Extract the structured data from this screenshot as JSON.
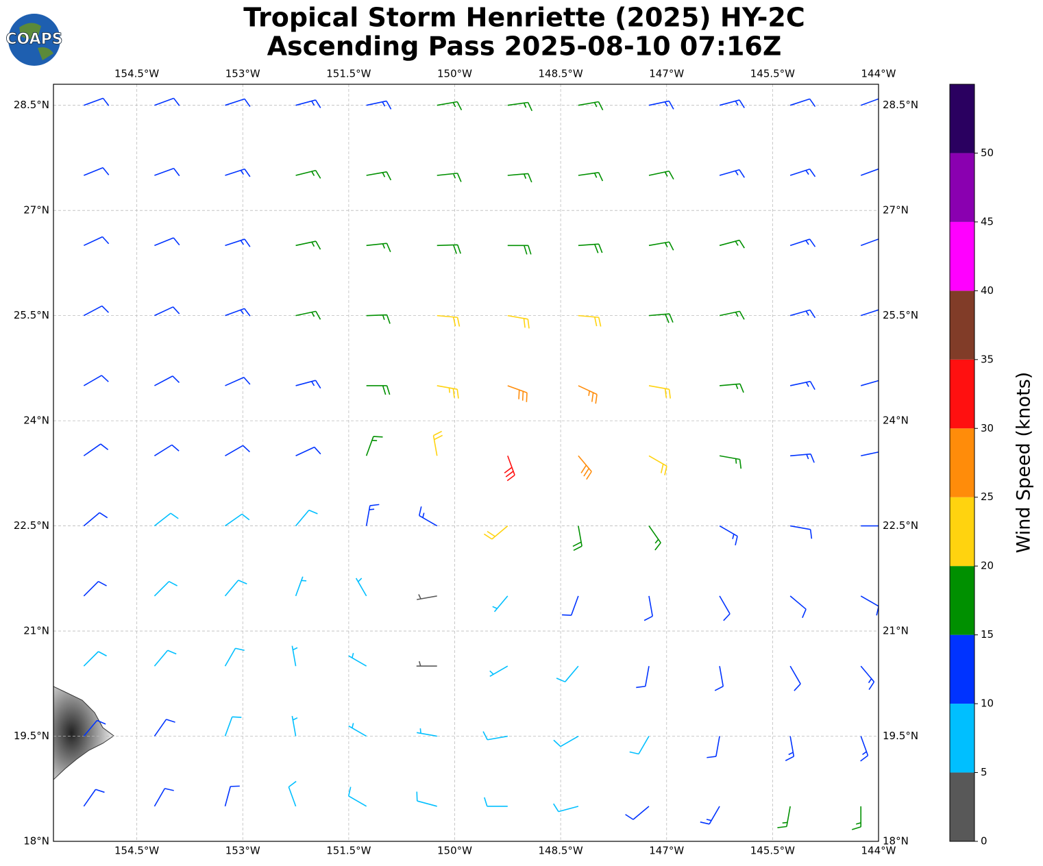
{
  "chart_data": {
    "type": "barbs",
    "title": "Tropical Storm Henriette (2025) HY-2C",
    "subtitle": "Ascending Pass 2025-08-10 07:16Z",
    "logo": "COAPS",
    "colorbar_label": "Wind Speed (knots)",
    "xlim": [
      -155.68,
      -144
    ],
    "ylim": [
      18,
      28.8
    ],
    "xticks": [
      {
        "value": -154.5,
        "label": "154.5°W"
      },
      {
        "value": -153,
        "label": "153°W"
      },
      {
        "value": -151.5,
        "label": "151.5°W"
      },
      {
        "value": -150,
        "label": "150°W"
      },
      {
        "value": -148.5,
        "label": "148.5°W"
      },
      {
        "value": -147,
        "label": "147°W"
      },
      {
        "value": -145.5,
        "label": "145.5°W"
      },
      {
        "value": -144,
        "label": "144°W"
      }
    ],
    "yticks": [
      {
        "value": 18,
        "label": "18°N"
      },
      {
        "value": 19.5,
        "label": "19.5°N"
      },
      {
        "value": 21,
        "label": "21°N"
      },
      {
        "value": 22.5,
        "label": "22.5°N"
      },
      {
        "value": 24,
        "label": "24°N"
      },
      {
        "value": 25.5,
        "label": "25.5°N"
      },
      {
        "value": 27,
        "label": "27°N"
      },
      {
        "value": 28.5,
        "label": "28.5°N"
      }
    ],
    "grid": true,
    "clim": [
      0,
      55
    ],
    "cticks": [
      0,
      5,
      10,
      15,
      20,
      25,
      30,
      35,
      40,
      45,
      50
    ],
    "colors": [
      "#585858",
      "#00bfff",
      "#0033ff",
      "#009000",
      "#ffd30f",
      "#ff8c0a",
      "#ff1010",
      "#813c28",
      "#ff00ff",
      "#8a00b0",
      "#2a0060"
    ],
    "lons": [
      -155.25,
      -154.25,
      -153.25,
      -152.25,
      -151.25,
      -150.25,
      -149.25,
      -148.25,
      -147.25,
      -146.25,
      -145.25,
      -144.25
    ],
    "lats": [
      28.5,
      27.5,
      26.5,
      25.5,
      24.5,
      23.5,
      22.5,
      21.5,
      20.5,
      19.5,
      18.5
    ],
    "speed": [
      [
        12,
        12,
        12,
        13,
        14,
        16,
        16,
        16,
        14,
        13,
        12,
        11
      ],
      [
        12,
        12,
        13,
        15,
        16,
        17,
        17,
        17,
        16,
        14,
        13,
        12
      ],
      [
        11,
        12,
        14,
        16,
        17,
        18,
        19,
        18,
        17,
        15,
        13,
        12
      ],
      [
        11,
        11,
        13,
        15,
        17,
        20,
        22,
        22,
        19,
        16,
        14,
        12
      ],
      [
        10,
        11,
        12,
        14,
        18,
        23,
        28,
        26,
        22,
        17,
        14,
        12
      ],
      [
        10,
        10,
        11,
        12,
        15,
        22,
        30,
        28,
        22,
        17,
        13,
        12
      ],
      [
        10,
        9,
        9,
        8,
        13,
        14,
        20,
        19,
        16,
        13,
        12,
        11
      ],
      [
        10,
        9,
        8,
        7,
        5,
        4,
        7,
        10,
        12,
        12,
        11,
        12
      ],
      [
        9,
        8,
        8,
        7,
        6,
        4,
        5,
        8,
        10,
        11,
        12,
        13
      ],
      [
        11,
        10,
        8,
        7,
        7,
        7,
        8,
        8,
        9,
        11,
        13,
        14
      ],
      [
        12,
        12,
        10,
        8,
        8,
        8,
        8,
        9,
        10,
        13,
        15,
        16
      ]
    ],
    "direction": [
      [
        70,
        70,
        72,
        75,
        78,
        80,
        82,
        80,
        78,
        75,
        72,
        70
      ],
      [
        68,
        70,
        72,
        76,
        80,
        84,
        85,
        82,
        78,
        74,
        72,
        70
      ],
      [
        65,
        68,
        72,
        78,
        84,
        88,
        90,
        86,
        80,
        75,
        72,
        70
      ],
      [
        62,
        65,
        70,
        78,
        88,
        95,
        100,
        95,
        85,
        78,
        74,
        72
      ],
      [
        60,
        62,
        66,
        75,
        90,
        100,
        110,
        115,
        100,
        85,
        78,
        74
      ],
      [
        55,
        58,
        60,
        65,
        20,
        350,
        160,
        140,
        120,
        100,
        85,
        78
      ],
      [
        50,
        52,
        55,
        40,
        10,
        300,
        230,
        170,
        145,
        120,
        100,
        90
      ],
      [
        45,
        45,
        40,
        20,
        330,
        260,
        220,
        200,
        170,
        150,
        130,
        120
      ],
      [
        45,
        40,
        30,
        350,
        300,
        270,
        240,
        220,
        190,
        170,
        150,
        140
      ],
      [
        40,
        35,
        20,
        350,
        300,
        280,
        260,
        240,
        210,
        190,
        170,
        160
      ],
      [
        35,
        30,
        15,
        340,
        300,
        285,
        270,
        255,
        230,
        210,
        190,
        180
      ]
    ]
  }
}
